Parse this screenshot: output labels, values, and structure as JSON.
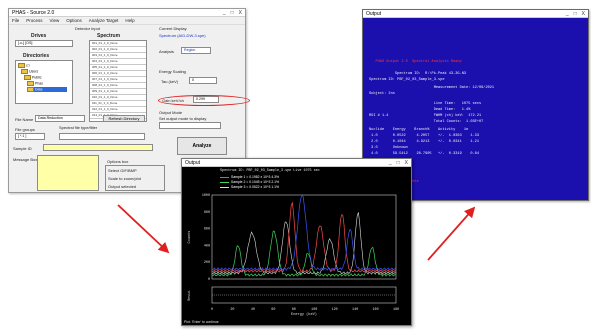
{
  "dialog": {
    "title": "PHAS - Source 2.0",
    "window_controls": [
      "_",
      "□",
      "X"
    ],
    "menu": [
      "File",
      "Process",
      "View",
      "Options",
      "Analyze Target",
      "Help"
    ],
    "section_main": "Detector input",
    "drives_label": "Drives",
    "drive_value": "[-c-] [OS]",
    "directories_label": "Directories",
    "tree": [
      "c:\\",
      "Users",
      "Public",
      "Phas",
      "Data"
    ],
    "spectrum_label": "Spectrum",
    "spectra": [
      "001_01_1_0_Done",
      "002_01_1_0_Done",
      "003_01_1_0_Done",
      "004_01_1_0_Done",
      "005_01_1_0_Done",
      "006_01_1_0_Done",
      "007_01_1_0_Done",
      "008_01_1_0_Done",
      "009_01_1_0_Done",
      "010_01_1_0_Done",
      "011_01_1_0_Done",
      "012_01_1_0_Done",
      "013_01_1_0_Done"
    ],
    "file_name_label": "File Name",
    "file_name_value": "Data Reduction",
    "refresh_button": "Refresh Directory",
    "file_groups_label": "File groups",
    "file_groups_value": "[ *.1 ]",
    "spectral_file_label": "Spectral file type/filter",
    "sample_id_label": "Sample ID",
    "message_box_label": "Message Box",
    "current_display_label": "Current Display",
    "current_display_value": "Spectrum (AID-DW-3.spe)",
    "analysis_label": "Analysis",
    "analysis_value": "Region",
    "energy_section": "Energy Scaling",
    "tau_label": "Tau (keV)",
    "tau_value": "0",
    "gain_label": "Gain keV/ch",
    "gain_value": "0.299",
    "output_label": "Output Mode",
    "output_note": "Set output mode to display",
    "analyze_button": "Analyze",
    "options_section": "Options box",
    "options": [
      "Select GIF/BMP",
      "Scale to zoom/plot",
      "Output selected"
    ]
  },
  "console": {
    "title": "Output",
    "lines": [
      {
        "text": "   PHAS Output 2.0  Spectral Analysis Ready  ",
        "tone": "red"
      },
      {
        "text": "            Spectrum ID:  R:\\Pk-Peak 43-3G-N3",
        "tone": "white"
      },
      {
        "text": "Spectrum ID: PBF_02_03_Sample_3.spe",
        "tone": "white"
      },
      {
        "text": "                              Measurement Date: 12/08/2021",
        "tone": "white"
      },
      {
        "text": "Subject: 2ns",
        "tone": "white"
      },
      {
        "text": "                              Live Time:   1075 secs",
        "tone": "white"
      },
      {
        "text": "                              Dead Time:   1.4%",
        "tone": "white"
      },
      {
        "text": "ROI # 1-4                     FWHM (ch) keV:  172.21",
        "tone": "white"
      },
      {
        "text": "                              Total Counts:  1.03E+07",
        "tone": "white"
      },
      {
        "text": "Nuclide    Energy    Branch%    Activity    1σ",
        "tone": "white"
      },
      {
        "text": " 1.0       0.0522     4.2057    +/-  1.0363    1.33",
        "tone": "white"
      },
      {
        "text": " 2.0       0.1044     4.9213    +/-  0.0341    1.21",
        "tone": "white"
      },
      {
        "text": " 3.0       Unknown",
        "tone": "white"
      },
      {
        "text": " 4.0       59.5412    28.7905   +/-  0.3319    0.84",
        "tone": "white"
      },
      {
        "text": "PHAS  Analysis complete",
        "tone": "red"
      }
    ]
  },
  "plot": {
    "title": "Output",
    "header": "Spectrum ID: PBF_02_03_Sample_3.spe   Live 1075 sec",
    "legend": [
      {
        "label": "Sample 1 = 0.1982  x 10^3  4.3%",
        "color": "#ff4a4a"
      },
      {
        "label": "Sample 2 = 0.1045  x 10^3  2.1%",
        "color": "#3fd65a"
      },
      {
        "label": "Sample 3 = 0.0522  x 10^3  1.1%",
        "color": "#dcdcdc"
      }
    ],
    "ylabel": "Counts",
    "ylabel2": "Resid.",
    "xlabel": "Energy (keV)",
    "x_ticks": [
      "0",
      "20",
      "40",
      "60",
      "80",
      "100",
      "120",
      "140",
      "160",
      "180"
    ],
    "y_ticks": [
      "1000",
      "800",
      "600",
      "400",
      "200",
      "0"
    ],
    "status": "Plot: 'Enter' to continue"
  },
  "arrows_color": "#e02020"
}
